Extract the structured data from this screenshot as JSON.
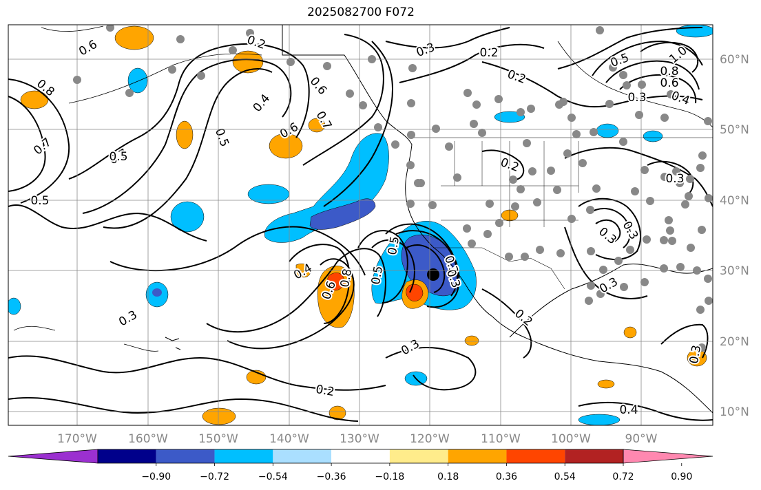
{
  "title": "2025082700 F072",
  "map": {
    "lon_labels": [
      "170°W",
      "160°W",
      "150°W",
      "140°W",
      "130°W",
      "120°W",
      "110°W",
      "100°W",
      "90°W"
    ],
    "lat_labels": [
      "60°N",
      "50°N",
      "40°N",
      "30°N",
      "20°N",
      "10°N"
    ],
    "lon_range": [
      -180,
      -80
    ],
    "lat_range": [
      8,
      65
    ],
    "storm_marker_position": {
      "lon": -120,
      "lat": 29.5
    }
  },
  "colorbar": {
    "ticks": [
      "−0.90",
      "−0.72",
      "−0.54",
      "−0.36",
      "−0.18",
      "0.18",
      "0.36",
      "0.54",
      "0.72",
      "0.90"
    ],
    "colors": [
      "#9b30d0",
      "#00008b",
      "#3c5ac8",
      "#00bfff",
      "#aadfff",
      "#ffffff",
      "#ffec8b",
      "#ffa500",
      "#ff4500",
      "#b22222",
      "#ff88b0"
    ]
  },
  "contour_labels": [
    "0.6",
    "0.2",
    "0.3",
    "0.2",
    "0.2",
    "0.5",
    "1.0",
    "0.8",
    "0.6",
    "0.4",
    "0.3",
    "0.8",
    "0.7",
    "0.5",
    "0.4",
    "0.6",
    "0.7",
    "0.7",
    "0.5",
    "0.6",
    "0.5",
    "0.2",
    "0.3",
    "0.3",
    "0.3",
    "0.5",
    "0.4",
    "0.6",
    "0.8",
    "0.5",
    "0.3",
    "0.3",
    "0.3",
    "0.3",
    "0.2",
    "0.2",
    "0.3",
    "0.4",
    "0.3",
    "0.2"
  ]
}
